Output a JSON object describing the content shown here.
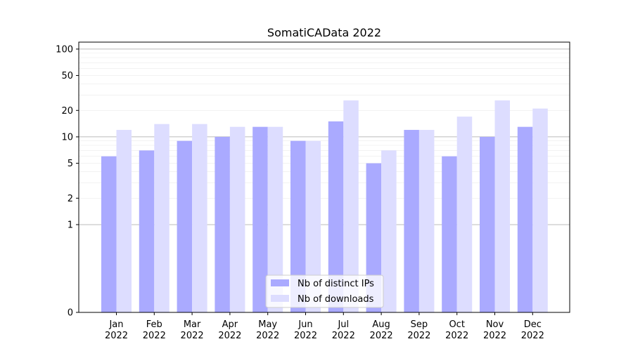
{
  "chart_data": {
    "type": "bar",
    "title": "SomatiCAData 2022",
    "xlabel": "",
    "ylabel": "",
    "y_scale": "symlog",
    "ylim": [
      0,
      120
    ],
    "y_ticks": [
      0,
      1,
      2,
      5,
      10,
      20,
      50,
      100
    ],
    "y_tick_labels": [
      "0",
      "1",
      "2",
      "5",
      "10",
      "20",
      "50",
      "100"
    ],
    "grid": true,
    "legend_position": "bottom-center",
    "categories": [
      {
        "month": "Jan",
        "year": "2022"
      },
      {
        "month": "Feb",
        "year": "2022"
      },
      {
        "month": "Mar",
        "year": "2022"
      },
      {
        "month": "Apr",
        "year": "2022"
      },
      {
        "month": "May",
        "year": "2022"
      },
      {
        "month": "Jun",
        "year": "2022"
      },
      {
        "month": "Jul",
        "year": "2022"
      },
      {
        "month": "Aug",
        "year": "2022"
      },
      {
        "month": "Sep",
        "year": "2022"
      },
      {
        "month": "Oct",
        "year": "2022"
      },
      {
        "month": "Nov",
        "year": "2022"
      },
      {
        "month": "Dec",
        "year": "2022"
      }
    ],
    "series": [
      {
        "name": "Nb of distinct IPs",
        "color": "#aaaaff",
        "values": [
          6,
          7,
          9,
          10,
          13,
          9,
          15,
          5,
          12,
          6,
          10,
          13
        ]
      },
      {
        "name": "Nb of downloads",
        "color": "#ddddff",
        "values": [
          12,
          14,
          14,
          13,
          13,
          9,
          26,
          7,
          12,
          17,
          26,
          21
        ]
      }
    ]
  }
}
